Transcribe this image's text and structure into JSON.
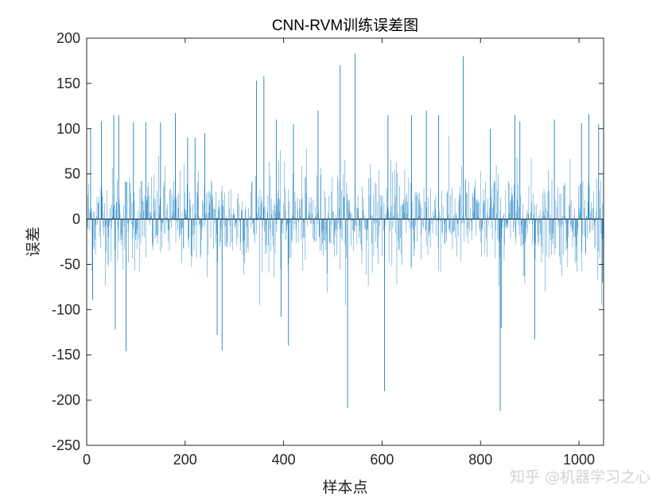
{
  "chart_data": {
    "type": "bar",
    "title": "CNN-RVM训练误差图",
    "xlabel": "样本点",
    "ylabel": "误差",
    "xlim": [
      0,
      1050
    ],
    "ylim": [
      -250,
      200
    ],
    "xticks": [
      0,
      200,
      400,
      600,
      800,
      1000
    ],
    "yticks": [
      -250,
      -200,
      -150,
      -100,
      -50,
      0,
      50,
      100,
      150,
      200
    ],
    "xtick_labels": [
      "0",
      "200",
      "400",
      "600",
      "800",
      "1000"
    ],
    "ytick_labels": [
      "-250",
      "-200",
      "-150",
      "-100",
      "-50",
      "0",
      "50",
      "100",
      "150",
      "200"
    ],
    "color": "#0072BD",
    "grid": false,
    "n_points": 1050,
    "series": [
      {
        "x": [
          8,
          12,
          30,
          55,
          58,
          65,
          80,
          95,
          120,
          150,
          180,
          205,
          220,
          240,
          265,
          275,
          345,
          360,
          385,
          395,
          410,
          420,
          470,
          515,
          530,
          545,
          605,
          612,
          660,
          690,
          715,
          765,
          820,
          840,
          842,
          870,
          880,
          910,
          950,
          1005,
          1020,
          1040,
          1048
        ],
        "values": [
          100,
          -89,
          108,
          115,
          -122,
          115,
          -146,
          107,
          107,
          107,
          117,
          90,
          90,
          95,
          -128,
          -145,
          153,
          158,
          110,
          -108,
          -140,
          105,
          120,
          170,
          -209,
          183,
          -190,
          115,
          115,
          120,
          115,
          180,
          100,
          -212,
          -120,
          115,
          108,
          -133,
          110,
          106,
          116,
          105,
          -70
        ]
      }
    ],
    "watermark": "知乎 @机器学习之心"
  }
}
